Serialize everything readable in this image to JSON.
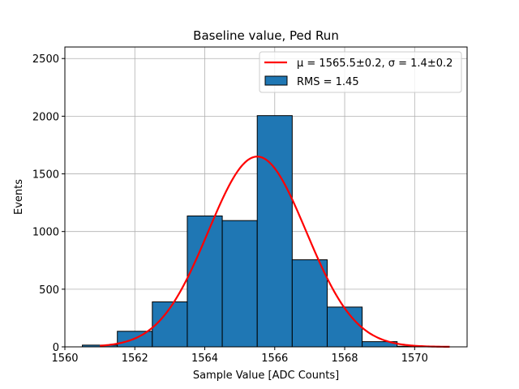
{
  "chart_data": {
    "type": "bar",
    "title": "Baseline value, Ped Run",
    "xlabel": "Sample Value [ADC Counts]",
    "ylabel": "Events",
    "xlim": [
      1560,
      1571.5
    ],
    "ylim": [
      0,
      2600
    ],
    "xticks": [
      1560,
      1562,
      1564,
      1566,
      1568,
      1570
    ],
    "yticks": [
      0,
      500,
      1000,
      1500,
      2000,
      2500
    ],
    "grid": true,
    "legend_position": "top-right",
    "bar_color": "#1f77b4",
    "fit_color": "#ff0000",
    "bins": [
      {
        "x0": 1560.5,
        "x1": 1561.5,
        "value": 15
      },
      {
        "x0": 1561.5,
        "x1": 1562.5,
        "value": 135
      },
      {
        "x0": 1562.5,
        "x1": 1563.5,
        "value": 390
      },
      {
        "x0": 1563.5,
        "x1": 1564.5,
        "value": 1135
      },
      {
        "x0": 1564.5,
        "x1": 1565.5,
        "value": 1095
      },
      {
        "x0": 1565.5,
        "x1": 1566.5,
        "value": 2005
      },
      {
        "x0": 1566.5,
        "x1": 1567.5,
        "value": 755
      },
      {
        "x0": 1567.5,
        "x1": 1568.5,
        "value": 345
      },
      {
        "x0": 1568.5,
        "x1": 1569.5,
        "value": 45
      },
      {
        "x0": 1569.5,
        "x1": 1570.5,
        "value": 5
      }
    ],
    "fit": {
      "mu": 1565.5,
      "sigma": 1.4,
      "amplitude": 1650,
      "x_range": [
        1561,
        1571
      ]
    },
    "legend": {
      "fit_label": "μ = 1565.5±0.2, σ = 1.4±0.2",
      "hist_label": "RMS = 1.45"
    }
  }
}
